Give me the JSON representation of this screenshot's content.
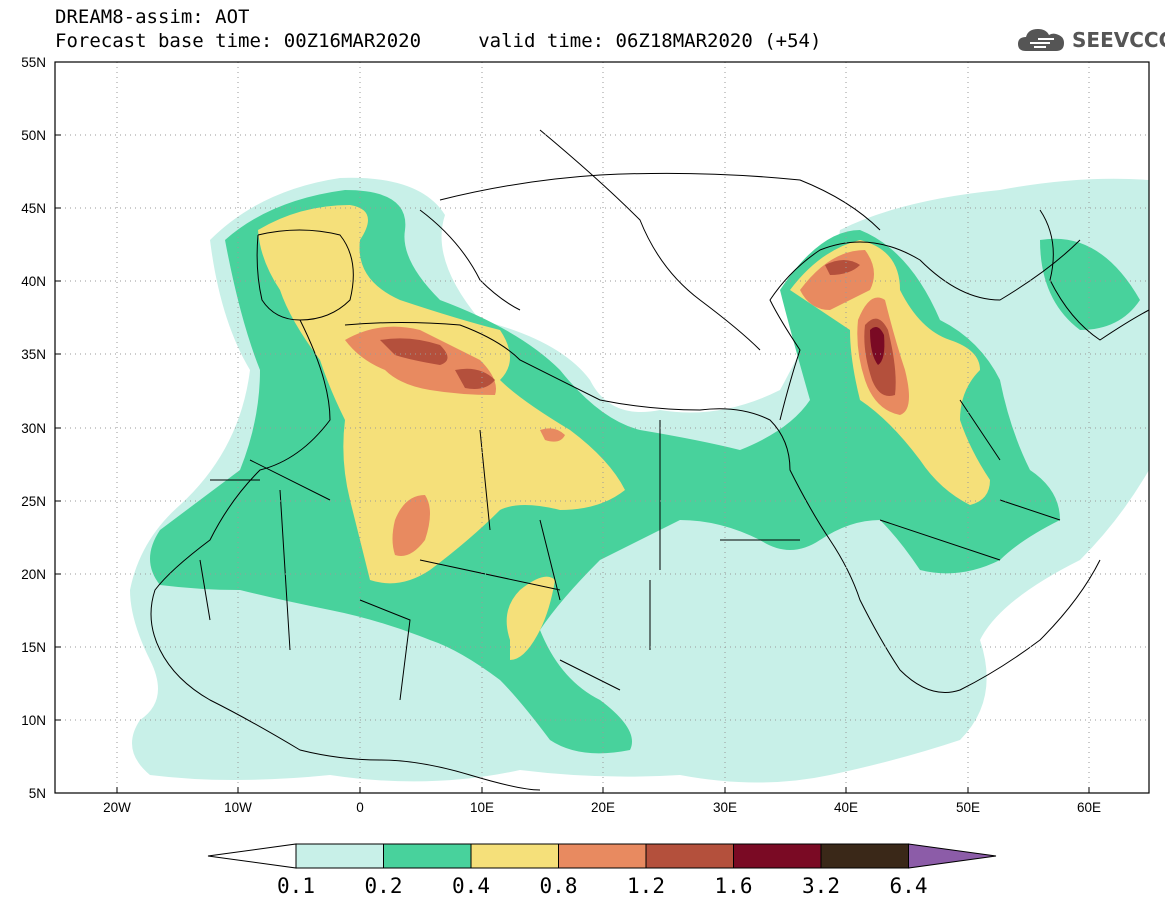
{
  "header": {
    "title": "DREAM8-assim: AOT",
    "line2": "Forecast base time: 00Z16MAR2020     valid time: 06Z18MAR2020 (+54)"
  },
  "logo": {
    "text": "SEEVCCC",
    "icon": "cloud-icon"
  },
  "axes": {
    "lat_labels": [
      "55N",
      "50N",
      "45N",
      "40N",
      "35N",
      "30N",
      "25N",
      "20N",
      "15N",
      "10N",
      "5N"
    ],
    "lon_labels": [
      "20W",
      "10W",
      "0",
      "10E",
      "20E",
      "30E",
      "40E",
      "50E",
      "60E"
    ],
    "lat_range": [
      5,
      55
    ],
    "lon_range": [
      -25,
      65
    ],
    "grid": "dotted"
  },
  "legend": {
    "levels": [
      "0.1",
      "0.2",
      "0.4",
      "0.8",
      "1.2",
      "1.6",
      "3.2",
      "6.4"
    ],
    "colors": [
      "#ffffff",
      "#c8f0e8",
      "#48d29c",
      "#f5e07a",
      "#e88a60",
      "#b4503c",
      "#7a0a24",
      "#3a2818",
      "#8c5ca8"
    ]
  }
}
